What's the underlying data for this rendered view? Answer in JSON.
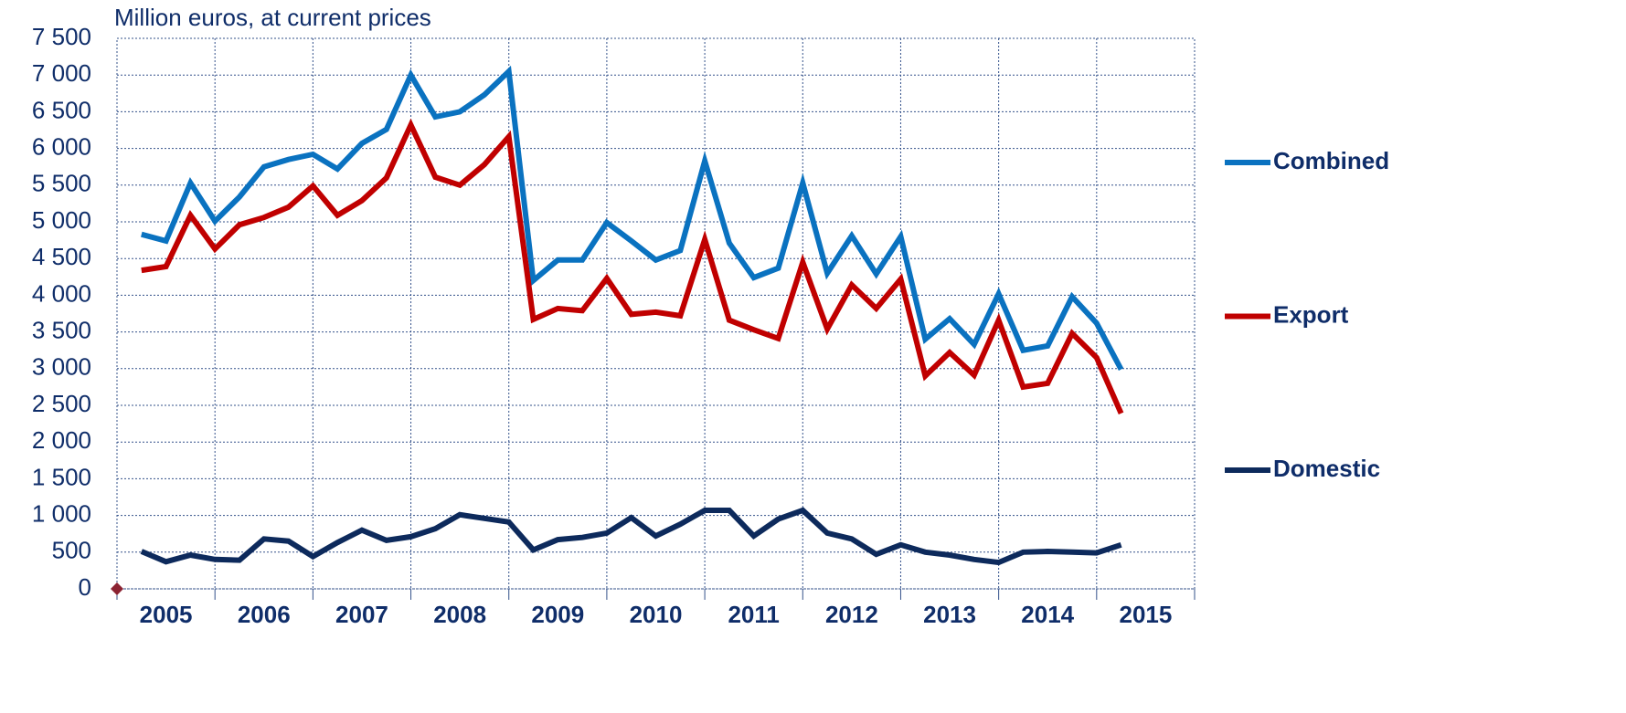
{
  "chart_data": {
    "type": "line",
    "title": "Million euros, at current prices",
    "categories": [
      "2005",
      null,
      null,
      null,
      "2006",
      null,
      null,
      null,
      "2007",
      null,
      null,
      null,
      "2008",
      null,
      null,
      null,
      "2009",
      null,
      null,
      null,
      "2010",
      null,
      null,
      null,
      "2011",
      null,
      null,
      null,
      "2012",
      null,
      null,
      null,
      "2013",
      null,
      null,
      null,
      "2014",
      null,
      null,
      null,
      "2015",
      null,
      null,
      null
    ],
    "series": [
      {
        "name": "Combined",
        "color": "#0a72c0",
        "values": [
          4830,
          4740,
          5530,
          5010,
          5340,
          5750,
          5850,
          5920,
          5720,
          6070,
          6260,
          7000,
          6430,
          6500,
          6730,
          7050,
          4200,
          4480,
          4480,
          4990,
          4740,
          4480,
          4610,
          5830,
          4710,
          4240,
          4370,
          5530,
          4300,
          4810,
          4290,
          4800,
          3400,
          3680,
          3330,
          4020,
          3250,
          3310,
          3980,
          3620,
          2990,
          null,
          null,
          null
        ]
      },
      {
        "name": "Export",
        "color": "#c00000",
        "values": [
          4340,
          4390,
          5090,
          4630,
          4960,
          5060,
          5200,
          5490,
          5090,
          5290,
          5600,
          6320,
          5610,
          5500,
          5780,
          6160,
          3670,
          3820,
          3790,
          4230,
          3740,
          3770,
          3720,
          4760,
          3660,
          3530,
          3410,
          4450,
          3540,
          4140,
          3820,
          4220,
          2900,
          3220,
          2910,
          3660,
          2750,
          2800,
          3480,
          3150,
          2390,
          null,
          null,
          null
        ]
      },
      {
        "name": "Domestic",
        "color": "#0d2a5c",
        "values": [
          510,
          370,
          460,
          400,
          390,
          680,
          650,
          440,
          630,
          800,
          660,
          710,
          820,
          1010,
          960,
          910,
          530,
          670,
          700,
          760,
          970,
          720,
          880,
          1070,
          1070,
          720,
          950,
          1070,
          760,
          680,
          470,
          600,
          500,
          460,
          400,
          360,
          500,
          510,
          500,
          490,
          600,
          null,
          null,
          null
        ]
      }
    ],
    "ylim": [
      0,
      7500
    ],
    "yticks": [
      0,
      500,
      {
        "value": 1000,
        "label": "1 000"
      },
      {
        "value": 1500,
        "label": "1 500"
      },
      {
        "value": 2000,
        "label": "2 000"
      },
      {
        "value": 2500,
        "label": "2 500"
      },
      {
        "value": 3000,
        "label": "3 000"
      },
      {
        "value": 3500,
        "label": "3 500"
      },
      {
        "value": 4000,
        "label": "4 000"
      },
      {
        "value": 4500,
        "label": "4 500"
      },
      {
        "value": 5000,
        "label": "5 000"
      },
      {
        "value": 5500,
        "label": "5 500"
      },
      {
        "value": 6000,
        "label": "6 000"
      },
      {
        "value": 6500,
        "label": "6 500"
      },
      {
        "value": 7000,
        "label": "7 000"
      },
      {
        "value": 7500,
        "label": "7 500"
      }
    ],
    "grid": true
  }
}
